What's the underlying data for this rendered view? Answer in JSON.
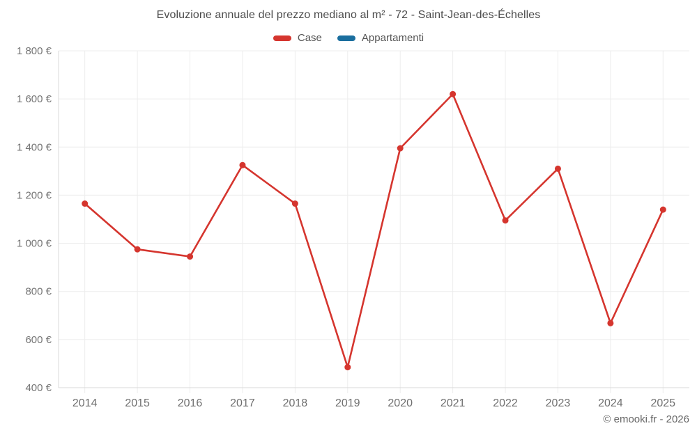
{
  "title": "Evoluzione annuale del prezzo mediano al m² - 72 - Saint-Jean-des-Échelles",
  "footer": "© emooki.fr - 2026",
  "legend": [
    {
      "label": "Case",
      "color": "#d5352e"
    },
    {
      "label": "Appartamenti",
      "color": "#1a6e9e"
    }
  ],
  "chart_data": {
    "type": "line",
    "title": "Evoluzione annuale del prezzo mediano al m² - 72 - Saint-Jean-des-Échelles",
    "categories": [
      "2014",
      "2015",
      "2016",
      "2017",
      "2018",
      "2019",
      "2020",
      "2021",
      "2022",
      "2023",
      "2024",
      "2025"
    ],
    "series": [
      {
        "name": "Case",
        "color": "#d5352e",
        "values": [
          1165,
          975,
          945,
          1325,
          1165,
          485,
          1395,
          1620,
          1095,
          1310,
          668,
          1140
        ]
      },
      {
        "name": "Appartamenti",
        "color": "#1a6e9e",
        "values": []
      }
    ],
    "ylim": [
      400,
      1800
    ],
    "y_ticks": [
      {
        "value": 400,
        "label": "400 €"
      },
      {
        "value": 600,
        "label": "600 €"
      },
      {
        "value": 800,
        "label": "800 €"
      },
      {
        "value": 1000,
        "label": "1 000 €"
      },
      {
        "value": 1200,
        "label": "1 200 €"
      },
      {
        "value": 1400,
        "label": "1 400 €"
      },
      {
        "value": 1600,
        "label": "1 600 €"
      },
      {
        "value": 1800,
        "label": "1 800 €"
      }
    ],
    "xlabel": "",
    "ylabel": "",
    "grid": true,
    "legend_position": "top",
    "colors": {
      "grid_horizontal": "#ececec",
      "grid_vertical": "#ededed",
      "axis_line": "#d8d8d8",
      "tick_label": "#757575",
      "x_label": "#6f6f6f"
    }
  }
}
